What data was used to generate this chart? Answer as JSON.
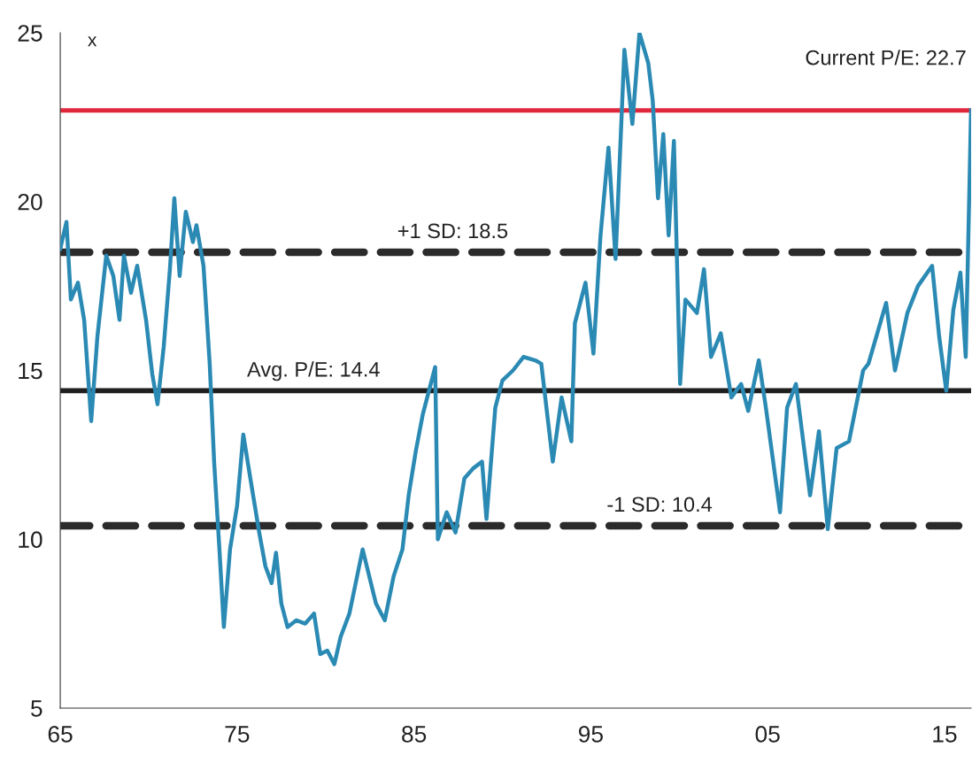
{
  "chart_data": {
    "type": "line",
    "ylabel": "x",
    "x": [
      1965.0,
      1965.35,
      1965.6,
      1966.0,
      1966.35,
      1966.75,
      1967.1,
      1967.6,
      1968.0,
      1968.35,
      1968.6,
      1969.0,
      1969.35,
      1969.85,
      1970.2,
      1970.5,
      1970.85,
      1971.2,
      1971.45,
      1971.75,
      1972.1,
      1972.5,
      1972.7,
      1973.1,
      1973.45,
      1973.7,
      1974.0,
      1974.25,
      1974.6,
      1975.0,
      1975.35,
      1975.75,
      1976.25,
      1976.6,
      1976.95,
      1977.2,
      1977.5,
      1977.85,
      1978.35,
      1978.85,
      1979.35,
      1979.7,
      1980.1,
      1980.5,
      1980.85,
      1981.35,
      1982.1,
      1982.85,
      1983.35,
      1983.85,
      1984.35,
      1984.7,
      1985.1,
      1985.5,
      1986.2,
      1986.35,
      1986.85,
      1987.35,
      1987.85,
      1988.35,
      1988.85,
      1989.1,
      1989.6,
      1990.0,
      1990.6,
      1991.2,
      1991.85,
      1992.2,
      1992.85,
      1993.35,
      1993.9,
      1994.1,
      1994.7,
      1995.15,
      1995.55,
      1996.0,
      1996.4,
      1996.9,
      1997.35,
      1997.75,
      1998.25,
      1998.5,
      1998.8,
      1999.1,
      1999.4,
      1999.7,
      2000.05,
      2000.35,
      2001.0,
      2001.4,
      2001.8,
      2002.35,
      2002.95,
      2003.5,
      2003.9,
      2004.5,
      2004.9,
      2005.7,
      2006.1,
      2006.6,
      2007.4,
      2007.9,
      2008.4,
      2008.9,
      2009.6,
      2010.4,
      2010.7,
      2011.7,
      2012.2,
      2012.9,
      2013.5,
      2014.3,
      2014.7,
      2015.1,
      2015.5,
      2015.9,
      2016.2,
      2016.4,
      2016.5
    ],
    "series": [
      {
        "color": "#2b8ab4",
        "values": [
          18.6,
          19.4,
          17.1,
          17.6,
          16.5,
          13.5,
          16.0,
          18.4,
          17.8,
          16.5,
          18.4,
          17.3,
          18.1,
          16.5,
          14.9,
          14.0,
          15.7,
          18.0,
          20.1,
          17.8,
          19.7,
          18.8,
          19.3,
          18.1,
          15.2,
          12.3,
          9.7,
          7.4,
          9.7,
          11.0,
          13.1,
          11.8,
          10.2,
          9.2,
          8.7,
          9.6,
          8.1,
          7.4,
          7.6,
          7.5,
          7.8,
          6.6,
          6.7,
          6.3,
          7.1,
          7.8,
          9.7,
          8.1,
          7.6,
          8.9,
          9.7,
          11.3,
          12.6,
          13.7,
          15.1,
          10.0,
          10.8,
          10.2,
          11.8,
          12.1,
          12.3,
          10.6,
          13.9,
          14.7,
          15.0,
          15.4,
          15.3,
          15.2,
          12.3,
          14.2,
          12.9,
          16.4,
          17.6,
          15.5,
          19.0,
          21.6,
          18.3,
          24.5,
          22.3,
          25.0,
          24.1,
          23.0,
          20.1,
          22.0,
          19.0,
          21.8,
          14.6,
          17.1,
          16.7,
          18.0,
          15.4,
          16.1,
          14.2,
          14.6,
          13.8,
          15.3,
          13.9,
          10.8,
          13.9,
          14.6,
          11.3,
          13.2,
          10.3,
          12.7,
          12.9,
          15.0,
          15.2,
          17.0,
          15.0,
          16.7,
          17.5,
          18.1,
          16.0,
          14.4,
          16.8,
          17.9,
          15.4,
          20.2,
          22.7
        ]
      }
    ],
    "xlim": [
      1965,
      2016.5
    ],
    "xticks": [
      {
        "value": 1965,
        "label": "65"
      },
      {
        "value": 1975,
        "label": "75"
      },
      {
        "value": 1985,
        "label": "85"
      },
      {
        "value": 1995,
        "label": "95"
      },
      {
        "value": 2005,
        "label": "05"
      },
      {
        "value": 2015,
        "label": "15"
      }
    ],
    "ylim": [
      5,
      25
    ],
    "yticks": [
      5,
      10,
      15,
      20,
      25
    ],
    "ref_lines": [
      {
        "axis": "y",
        "value": 22.7,
        "label": "Current P/E: 22.7",
        "color": "#e0283c",
        "line_style": "solid"
      },
      {
        "axis": "y",
        "value": 18.5,
        "label": "+1 SD: 18.5",
        "color": "#2b2b2b",
        "line_style": "dashed"
      },
      {
        "axis": "y",
        "value": 14.4,
        "label": "Avg. P/E: 14.4",
        "color": "#1f1f1f",
        "line_style": "solid"
      },
      {
        "axis": "y",
        "value": 10.4,
        "label": "-1 SD: 10.4",
        "color": "#2b2b2b",
        "line_style": "dashed"
      }
    ],
    "grid": false,
    "line_style": "solid"
  }
}
